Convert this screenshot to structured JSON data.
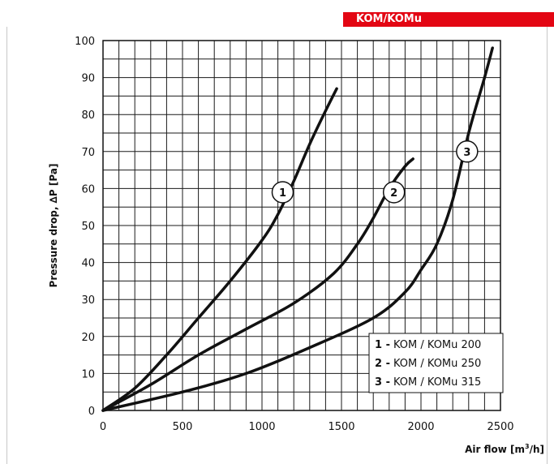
{
  "header": {
    "badge": "KOM/KOMu",
    "badge_color": "#e30613"
  },
  "chart_data": {
    "type": "line",
    "title": "",
    "xlabel": "Air flow [m",
    "xlabel_sup": "3",
    "xlabel_tail": "/h]",
    "ylabel": "Pressure drop, ∆P [Pa]",
    "xlim": [
      0,
      2500
    ],
    "ylim": [
      0,
      100
    ],
    "x_ticks": [
      0,
      500,
      1000,
      1500,
      2000,
      2500
    ],
    "y_ticks": [
      0,
      10,
      20,
      30,
      40,
      50,
      60,
      70,
      80,
      90,
      100
    ],
    "grid": true,
    "grid_x_step": 100,
    "grid_y_step": 5,
    "series": [
      {
        "name": "1",
        "color": "#111111",
        "points": [
          [
            0,
            0
          ],
          [
            200,
            6
          ],
          [
            400,
            15
          ],
          [
            600,
            25
          ],
          [
            800,
            35
          ],
          [
            1000,
            46
          ],
          [
            1100,
            53
          ],
          [
            1200,
            62
          ],
          [
            1300,
            72
          ],
          [
            1400,
            81
          ],
          [
            1470,
            87
          ]
        ]
      },
      {
        "name": "2",
        "color": "#111111",
        "points": [
          [
            0,
            0
          ],
          [
            300,
            7
          ],
          [
            600,
            15
          ],
          [
            900,
            22
          ],
          [
            1200,
            29
          ],
          [
            1450,
            37
          ],
          [
            1600,
            45
          ],
          [
            1700,
            52
          ],
          [
            1800,
            60
          ],
          [
            1900,
            66
          ],
          [
            1950,
            68
          ]
        ]
      },
      {
        "name": "3",
        "color": "#111111",
        "points": [
          [
            0,
            0
          ],
          [
            500,
            5
          ],
          [
            900,
            10
          ],
          [
            1300,
            17
          ],
          [
            1700,
            25
          ],
          [
            1900,
            32
          ],
          [
            2000,
            38
          ],
          [
            2100,
            45
          ],
          [
            2200,
            57
          ],
          [
            2300,
            75
          ],
          [
            2400,
            90
          ],
          [
            2450,
            98
          ]
        ]
      }
    ],
    "curve_labels": [
      {
        "text": "1",
        "x": 1130,
        "y": 59
      },
      {
        "text": "2",
        "x": 1830,
        "y": 59
      },
      {
        "text": "3",
        "x": 2290,
        "y": 70
      }
    ],
    "legend": {
      "position": "bottom-right",
      "entries": [
        {
          "key": "1 -",
          "label": "KOM / KOMu 200"
        },
        {
          "key": "2 -",
          "label": "KOM / KOMu 250"
        },
        {
          "key": "3 -",
          "label": "KOM / KOMu 315"
        }
      ]
    }
  }
}
